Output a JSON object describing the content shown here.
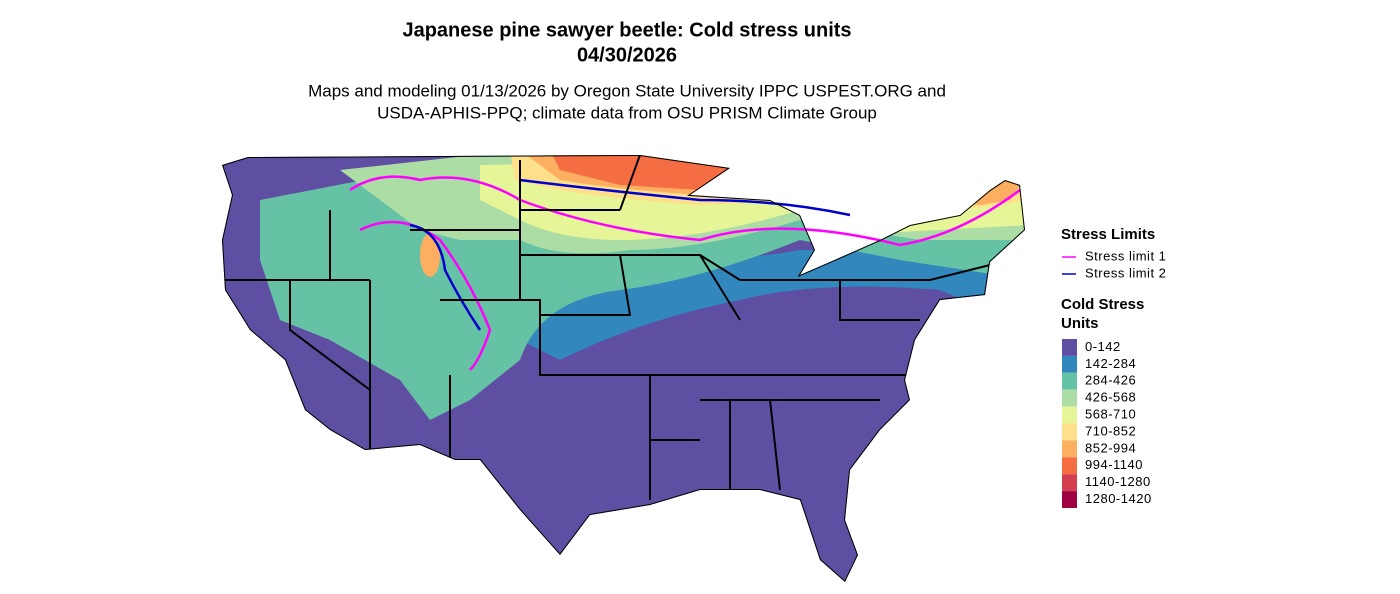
{
  "header": {
    "title_lines": [
      "Japanese pine sawyer beetle: Cold stress units",
      "04/30/2026"
    ],
    "subtitle_lines": [
      "Maps and modeling 01/13/2026 by Oregon State University IPPC USPEST.ORG and",
      "USDA-APHIS-PPQ; climate data from OSU PRISM Climate Group"
    ]
  },
  "legend": {
    "stress_limits": {
      "title": "Stress Limits",
      "items": [
        {
          "name": "Stress limit 1",
          "color": "#ff00ff"
        },
        {
          "name": "Stress limit 2",
          "color": "#0000cd"
        }
      ]
    },
    "cold_stress": {
      "title_lines": [
        "Cold Stress",
        "Units"
      ],
      "classes": [
        {
          "label": "0-142",
          "color": "#5e4fa2"
        },
        {
          "label": "142-284",
          "color": "#3288bd"
        },
        {
          "label": "284-426",
          "color": "#66c2a5"
        },
        {
          "label": "426-568",
          "color": "#abdda4"
        },
        {
          "label": "568-710",
          "color": "#e6f598"
        },
        {
          "label": "710-852",
          "color": "#fee08b"
        },
        {
          "label": "852-994",
          "color": "#fdae61"
        },
        {
          "label": "994-1140",
          "color": "#f46d43"
        },
        {
          "label": "1140-1280",
          "color": "#d53e4f"
        },
        {
          "label": "1280-1420",
          "color": "#9e0142"
        }
      ]
    }
  }
}
